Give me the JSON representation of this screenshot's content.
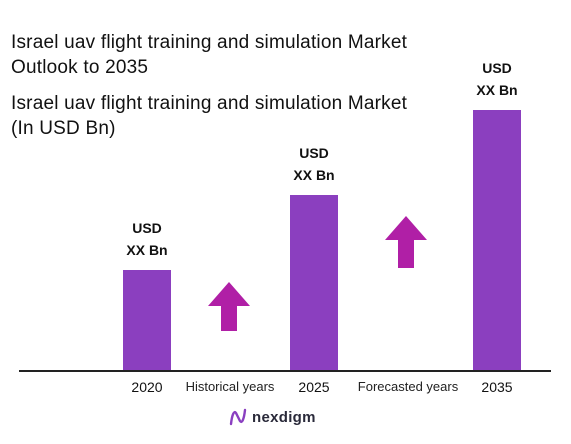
{
  "title": {
    "line1": "Israel uav flight training and simulation Market",
    "line2": "Outlook to 2035"
  },
  "subtitle": {
    "line1": "Israel uav flight training and simulation Market",
    "line2": "(In USD Bn)"
  },
  "chart_data": {
    "type": "bar",
    "categories": [
      "2020",
      "2025",
      "2035"
    ],
    "values": [
      1.0,
      1.75,
      2.6
    ],
    "value_note": "relative heights; exact values not shown",
    "data_labels": [
      [
        "USD",
        "XX Bn"
      ],
      [
        "USD",
        "XX Bn"
      ],
      [
        "USD",
        "XX Bn"
      ]
    ],
    "period_labels": [
      "Historical years",
      "Forecasted years"
    ],
    "bar_color": "#8b3fbf",
    "arrow_color": "#b01fa6",
    "grid": false,
    "legend": "none"
  },
  "brand": {
    "name": "nexdigm",
    "logo_color": "#8a3fc0"
  }
}
